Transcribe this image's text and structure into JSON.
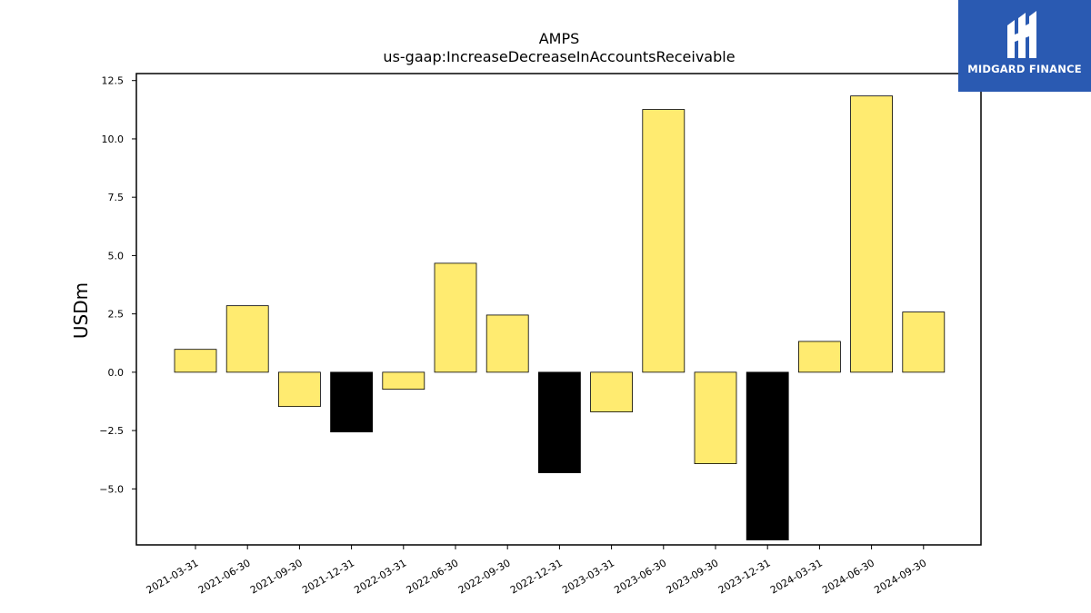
{
  "brand": {
    "name": "MIDGARD FINANCE",
    "icon": "midgard-logo-icon",
    "color": "#2a5ab2"
  },
  "chart_data": {
    "type": "bar",
    "title": "AMPS",
    "subtitle": "us-gaap:IncreaseDecreaseInAccountsReceivable",
    "xlabel": "",
    "ylabel": "USDm",
    "categories": [
      "2021-03-31",
      "2021-06-30",
      "2021-09-30",
      "2021-12-31",
      "2022-03-31",
      "2022-06-30",
      "2022-09-30",
      "2022-12-31",
      "2023-03-31",
      "2023-06-30",
      "2023-09-30",
      "2023-12-31",
      "2024-03-31",
      "2024-06-30",
      "2024-09-30"
    ],
    "values": [
      0.98,
      2.85,
      -1.47,
      -2.56,
      -0.73,
      4.67,
      2.45,
      -4.31,
      -1.7,
      11.26,
      -3.92,
      -7.19,
      1.32,
      11.84,
      2.58
    ],
    "highlight": [
      false,
      false,
      false,
      true,
      false,
      false,
      false,
      true,
      false,
      false,
      false,
      true,
      false,
      false,
      false
    ],
    "colors": {
      "normal": "#ffeb70",
      "highlight": "#000000",
      "edge": "#000000"
    },
    "ylim": [
      -7.4,
      12.8
    ],
    "yticks": [
      -5.0,
      -2.5,
      0.0,
      2.5,
      5.0,
      7.5,
      10.0,
      12.5
    ],
    "ytick_labels": [
      "−5.0",
      "−2.5",
      "0.0",
      "2.5",
      "5.0",
      "7.5",
      "10.0",
      "12.5"
    ],
    "grid": false,
    "legend": "none"
  }
}
